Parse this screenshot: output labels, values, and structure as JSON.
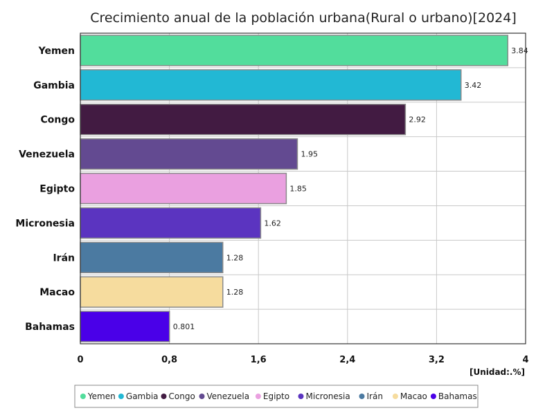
{
  "chart_data": {
    "type": "bar",
    "orientation": "horizontal",
    "title": "Crecimiento anual de la población urbana(Rural o urbano)[2024]",
    "unit": "[Unidad:.%]",
    "categories": [
      "Yemen",
      "Gambia",
      "Congo",
      "Venezuela",
      "Egipto",
      "Micronesia",
      "Irán",
      "Macao",
      "Bahamas"
    ],
    "values": [
      3.84,
      3.42,
      2.92,
      1.95,
      1.85,
      1.62,
      1.28,
      1.28,
      0.801
    ],
    "value_labels": [
      "3.84",
      "3.42",
      "2.92",
      "1.95",
      "1.85",
      "1.62",
      "1.28",
      "1.28",
      "0.801"
    ],
    "colors": [
      "#52dd9c",
      "#22b8d4",
      "#421b42",
      "#634a91",
      "#eaa0e0",
      "#5b34c0",
      "#4b7aa1",
      "#f6dc9e",
      "#4a00e8"
    ],
    "xlim": [
      0,
      4
    ],
    "xticks": [
      0,
      0.8,
      1.6,
      2.4,
      3.2,
      4
    ],
    "xtick_labels": [
      "0",
      "0,8",
      "1,6",
      "2,4",
      "3,2",
      "4"
    ],
    "grid": true,
    "legend": {
      "position": "bottom",
      "entries": [
        "Yemen",
        "Gambia",
        "Congo",
        "Venezuela",
        "Egipto",
        "Micronesia",
        "Irán",
        "Macao",
        "Bahamas"
      ]
    }
  }
}
